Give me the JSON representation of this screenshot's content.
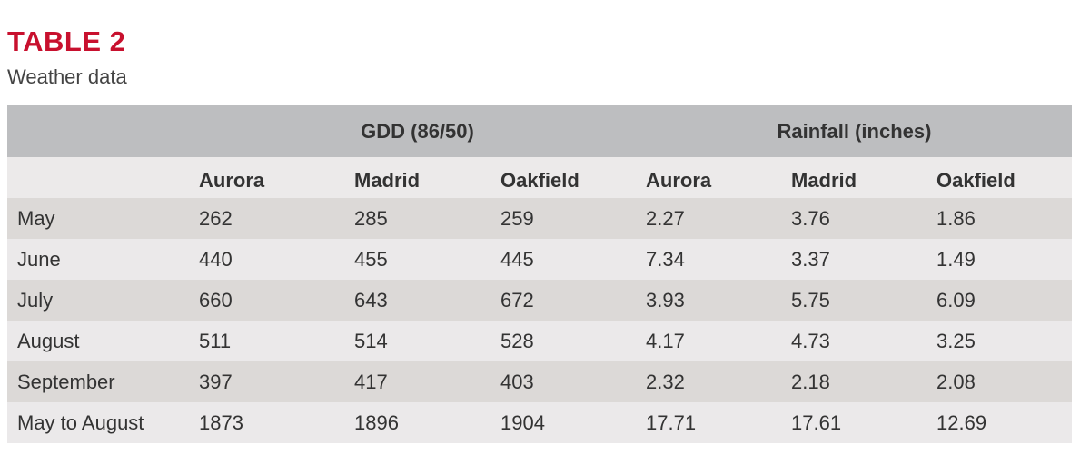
{
  "header": {
    "title": "TABLE 2",
    "subtitle": "Weather data"
  },
  "table": {
    "groups": [
      "GDD (86/50)",
      "Rainfall (inches)"
    ],
    "columns": [
      "Aurora",
      "Madrid",
      "Oakfield",
      "Aurora",
      "Madrid",
      "Oakfield"
    ],
    "rows": [
      [
        "May",
        "262",
        "285",
        "259",
        "2.27",
        "3.76",
        "1.86"
      ],
      [
        "June",
        "440",
        "455",
        "445",
        "7.34",
        "3.37",
        "1.49"
      ],
      [
        "July",
        "660",
        "643",
        "672",
        "3.93",
        "5.75",
        "6.09"
      ],
      [
        "August",
        "511",
        "514",
        "528",
        "4.17",
        "4.73",
        "3.25"
      ],
      [
        "September",
        "397",
        "417",
        "403",
        "2.32",
        "2.18",
        "2.08"
      ],
      [
        "May to August",
        "1873",
        "1896",
        "1904",
        "17.71",
        "17.61",
        "12.69"
      ]
    ]
  }
}
